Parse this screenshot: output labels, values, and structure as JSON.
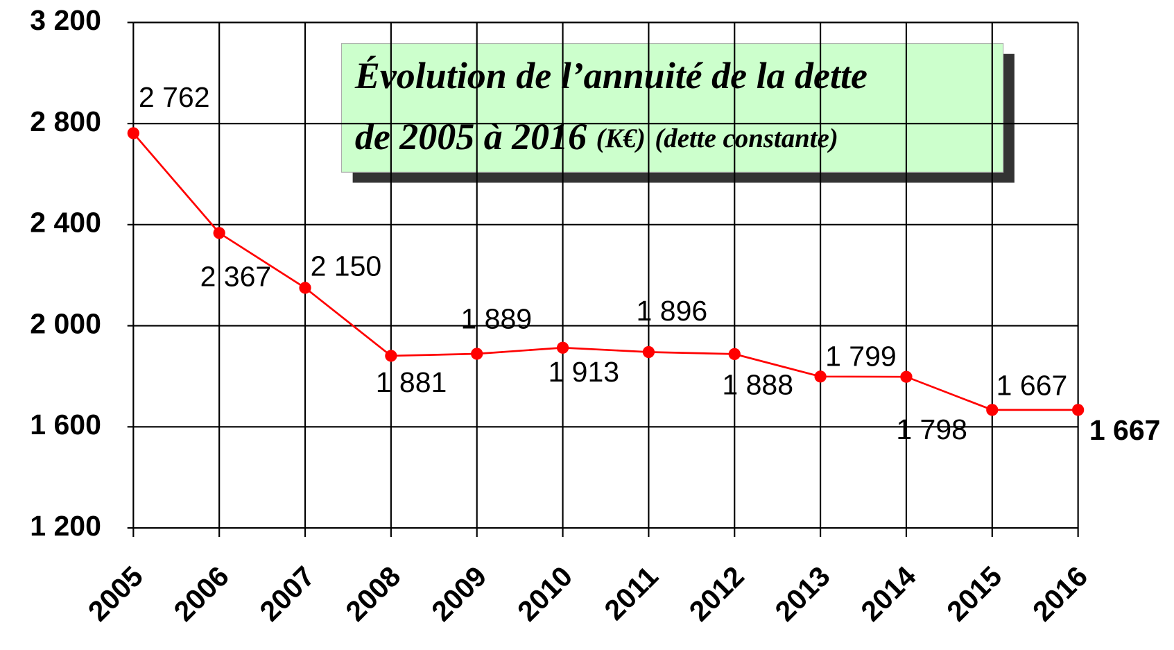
{
  "chart_data": {
    "type": "line",
    "title": [
      "Évolution de l’annuité de la dette",
      "de 2005 à 2016",
      "(K€)",
      "(dette constante)"
    ],
    "categories": [
      "2005",
      "2006",
      "2007",
      "2008",
      "2009",
      "2010",
      "2011",
      "2012",
      "2013",
      "2014",
      "2015",
      "2016"
    ],
    "series": [
      {
        "name": "Annuité",
        "color": "#ff0000",
        "values": [
          2762,
          2367,
          2150,
          1881,
          1889,
          1913,
          1896,
          1888,
          1799,
          1798,
          1667,
          1667
        ],
        "value_labels": [
          "2 762",
          "2 367",
          "2 150",
          "1 881",
          "1 889",
          "1 913",
          "1 896",
          "1 888",
          "1 799",
          "1 798",
          "1 667",
          "1 667"
        ]
      }
    ],
    "ylim": [
      1200,
      3200
    ],
    "yticks": [
      {
        "value": 1200,
        "label": "1 200"
      },
      {
        "value": 1600,
        "label": "1 600"
      },
      {
        "value": 2000,
        "label": "2 000"
      },
      {
        "value": 2400,
        "label": "2 400"
      },
      {
        "value": 2800,
        "label": "2 800"
      },
      {
        "value": 3200,
        "label": "3 200"
      }
    ],
    "grid": true
  }
}
